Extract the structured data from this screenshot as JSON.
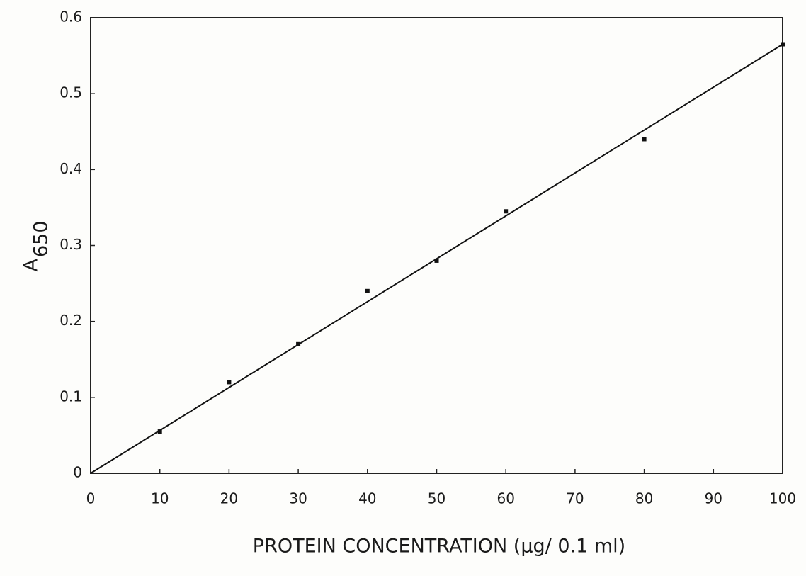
{
  "chart_data": {
    "type": "scatter",
    "ylabel": {
      "main": "A",
      "sub": "650"
    },
    "xlabel": "PROTEIN CONCENTRATION (µg/ 0.1 ml)",
    "x": [
      10,
      20,
      30,
      40,
      50,
      60,
      80,
      100
    ],
    "values": [
      0.055,
      0.12,
      0.17,
      0.24,
      0.28,
      0.345,
      0.44,
      0.565
    ],
    "color": "#111111",
    "fit": {
      "x": [
        0,
        100
      ],
      "values": [
        0,
        0.565
      ]
    },
    "xlim": [
      0,
      100
    ],
    "xticks": [
      0,
      10,
      20,
      30,
      40,
      50,
      60,
      70,
      80,
      90,
      100
    ],
    "ylim": [
      0,
      0.6
    ],
    "yticks": [
      0,
      0.1,
      0.2,
      0.3,
      0.4,
      0.5,
      0.6
    ]
  }
}
